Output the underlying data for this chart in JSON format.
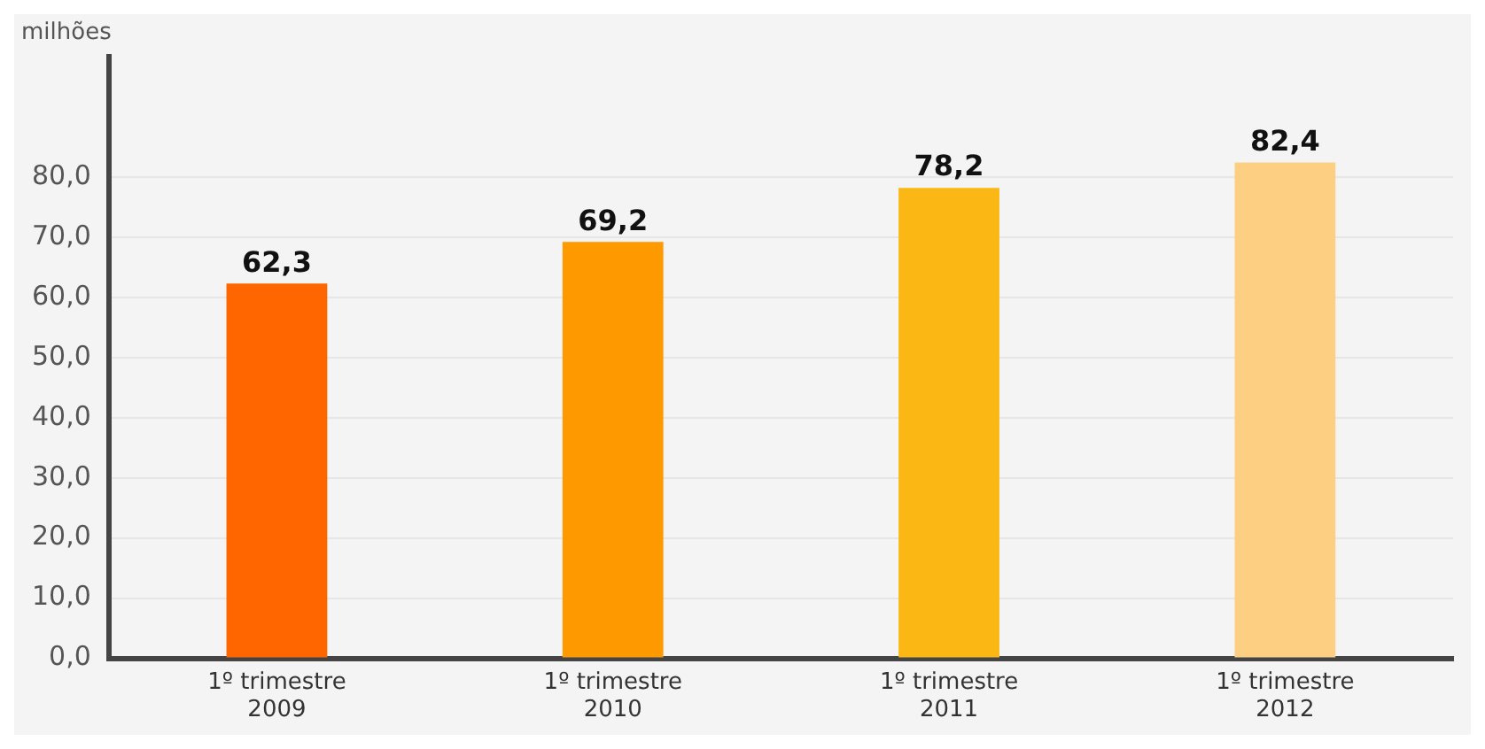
{
  "chart_data": {
    "type": "bar",
    "ylabel": "milhões",
    "categories": [
      "1º trimestre 2009",
      "1º trimestre 2010",
      "1º trimestre 2011",
      "1º trimestre 2012"
    ],
    "values": [
      62.3,
      69.2,
      78.2,
      82.4
    ],
    "colors": [
      "#ff6600",
      "#ff9900",
      "#fbb714",
      "#fdcf83"
    ],
    "ylim": [
      0,
      100
    ],
    "yticks": [
      {
        "value": 0,
        "label": "0,0"
      },
      {
        "value": 10,
        "label": "10,0"
      },
      {
        "value": 20,
        "label": "20,0"
      },
      {
        "value": 30,
        "label": "30,0"
      },
      {
        "value": 40,
        "label": "40,0"
      },
      {
        "value": 50,
        "label": "50,0"
      },
      {
        "value": 60,
        "label": "60,0"
      },
      {
        "value": 70,
        "label": "70,0"
      },
      {
        "value": 80,
        "label": "80,0"
      }
    ],
    "value_labels": [
      "62,3",
      "69,2",
      "78,2",
      "82,4"
    ],
    "grid": "y",
    "legend": false
  }
}
